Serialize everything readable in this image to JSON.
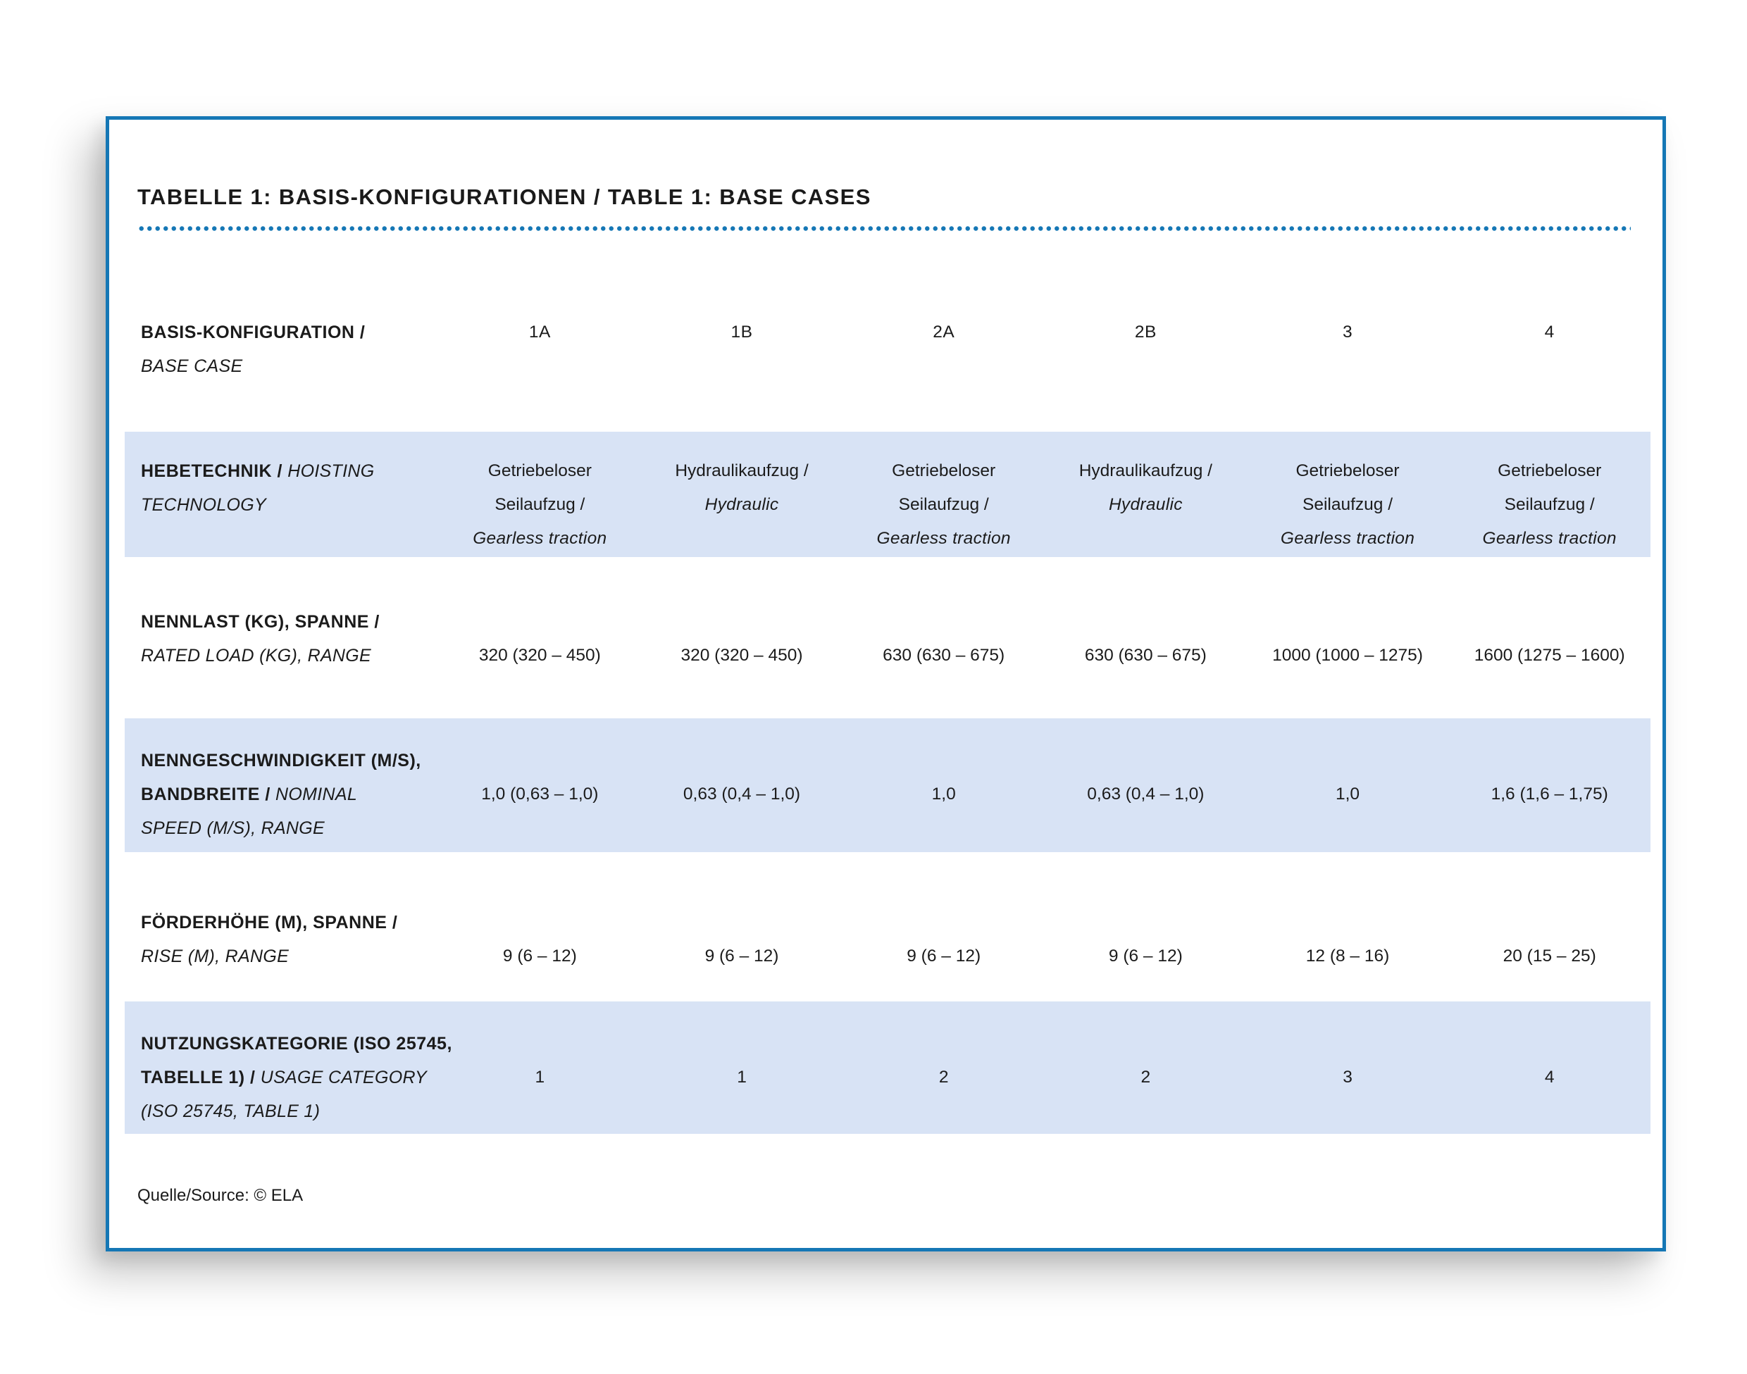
{
  "page": {
    "title": "TABELLE 1: BASIS-KONFIGURATIONEN / TABLE 1: BASE CASES",
    "source_note": "Quelle/Source: © ELA"
  },
  "colors": {
    "accent_blue": "#1577b5",
    "row_highlight_blue": "#d8e3f5",
    "text": "#1b1b1b"
  },
  "table": {
    "header_row": {
      "label_lines": [
        [
          {
            "t": "BASIS-KONFIGURATION /",
            "b": true
          }
        ],
        [
          {
            "t": "BASE CASE",
            "i": true
          }
        ]
      ],
      "columns": [
        "1A",
        "1B",
        "2A",
        "2B",
        "3",
        "4"
      ]
    },
    "rows": [
      {
        "id": "hebetechnik",
        "highlight": true,
        "values_line2": false,
        "label_lines": [
          [
            {
              "t": "HEBETECHNIK /",
              "b": true
            },
            {
              "t": " HOISTING",
              "i": true
            }
          ],
          [
            {
              "t": "TECHNOLOGY",
              "i": true
            }
          ]
        ],
        "cells": [
          [
            {
              "t": "Getriebeloser"
            },
            {
              "t": "Seilaufzug /"
            },
            {
              "t": "Gearless traction",
              "i": true
            }
          ],
          [
            {
              "t": "Hydraulikaufzug /"
            },
            {
              "t": "Hydraulic",
              "i": true
            }
          ],
          [
            {
              "t": "Getriebeloser"
            },
            {
              "t": "Seilaufzug /"
            },
            {
              "t": "Gearless traction",
              "i": true
            }
          ],
          [
            {
              "t": "Hydraulikaufzug /"
            },
            {
              "t": "Hydraulic",
              "i": true
            }
          ],
          [
            {
              "t": "Getriebeloser"
            },
            {
              "t": "Seilaufzug /"
            },
            {
              "t": "Gearless traction",
              "i": true
            }
          ],
          [
            {
              "t": "Getriebeloser"
            },
            {
              "t": "Seilaufzug /"
            },
            {
              "t": "Gearless traction",
              "i": true
            }
          ]
        ]
      },
      {
        "id": "nennlast",
        "highlight": false,
        "values_line2": true,
        "label_lines": [
          [
            {
              "t": "NENNLAST (KG), SPANNE /",
              "b": true
            }
          ],
          [
            {
              "t": "RATED LOAD (KG), RANGE",
              "i": true
            }
          ]
        ],
        "cells": [
          [
            {
              "t": "320 (320 – 450)"
            }
          ],
          [
            {
              "t": "320 (320 – 450)"
            }
          ],
          [
            {
              "t": "630 (630 – 675)"
            }
          ],
          [
            {
              "t": "630 (630 – 675)"
            }
          ],
          [
            {
              "t": "1000 (1000 – 1275)"
            }
          ],
          [
            {
              "t": "1600 (1275 – 1600)"
            }
          ]
        ]
      },
      {
        "id": "nenngeschwindigkeit",
        "highlight": true,
        "values_line2": true,
        "label_lines": [
          [
            {
              "t": "NENNGESCHWINDIGKEIT (M/S),",
              "b": true
            }
          ],
          [
            {
              "t": "BANDBREITE /",
              "b": true
            },
            {
              "t": " NOMINAL",
              "i": true
            }
          ],
          [
            {
              "t": "SPEED (M/S), RANGE",
              "i": true
            }
          ]
        ],
        "cells": [
          [
            {
              "t": "1,0 (0,63 – 1,0)"
            }
          ],
          [
            {
              "t": "0,63 (0,4 – 1,0)"
            }
          ],
          [
            {
              "t": "1,0"
            }
          ],
          [
            {
              "t": "0,63 (0,4 – 1,0)"
            }
          ],
          [
            {
              "t": "1,0"
            }
          ],
          [
            {
              "t": "1,6 (1,6 – 1,75)"
            }
          ]
        ]
      },
      {
        "id": "foerderhoehe",
        "highlight": false,
        "values_line2": true,
        "label_lines": [
          [
            {
              "t": "FÖRDERHÖHE (M), SPANNE /",
              "b": true
            }
          ],
          [
            {
              "t": "RISE (M), RANGE",
              "i": true
            }
          ]
        ],
        "cells": [
          [
            {
              "t": "9 (6 – 12)"
            }
          ],
          [
            {
              "t": "9 (6 – 12)"
            }
          ],
          [
            {
              "t": "9 (6 – 12)"
            }
          ],
          [
            {
              "t": "9 (6 – 12)"
            }
          ],
          [
            {
              "t": "12 (8 – 16)"
            }
          ],
          [
            {
              "t": "20 (15 – 25)"
            }
          ]
        ]
      },
      {
        "id": "nutzungskategorie",
        "highlight": true,
        "values_line2": true,
        "label_lines": [
          [
            {
              "t": "NUTZUNGSKATEGORIE (ISO 25745,",
              "b": true
            }
          ],
          [
            {
              "t": "TABELLE 1) /",
              "b": true
            },
            {
              "t": " USAGE CATEGORY",
              "i": true
            }
          ],
          [
            {
              "t": "(ISO 25745, TABLE 1)",
              "i": true
            }
          ]
        ],
        "cells": [
          [
            {
              "t": "1"
            }
          ],
          [
            {
              "t": "1"
            }
          ],
          [
            {
              "t": "2"
            }
          ],
          [
            {
              "t": "2"
            }
          ],
          [
            {
              "t": "3"
            }
          ],
          [
            {
              "t": "4"
            }
          ]
        ]
      }
    ]
  }
}
